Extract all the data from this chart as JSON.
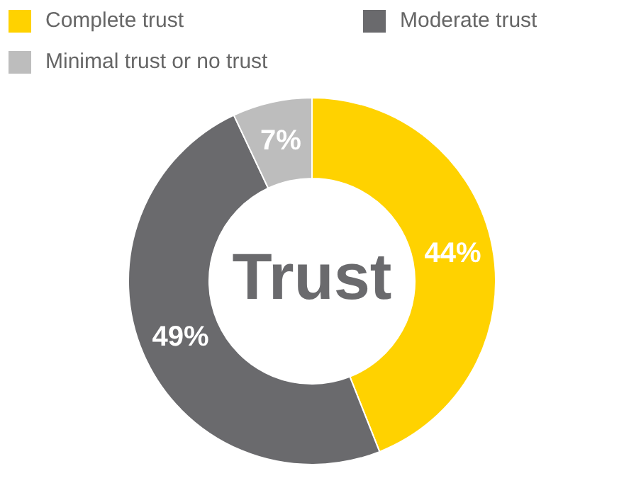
{
  "chart_data": {
    "type": "donut",
    "categories": [
      "Complete trust",
      "Moderate trust",
      "Minimal trust or no trust"
    ],
    "values": [
      44,
      49,
      7
    ],
    "colors": [
      "#ffd200",
      "#6a6a6d",
      "#bdbdbd"
    ],
    "value_labels": [
      "44%",
      "49%",
      "7%"
    ],
    "legend": "top left",
    "annotations": [
      "Trust"
    ]
  }
}
